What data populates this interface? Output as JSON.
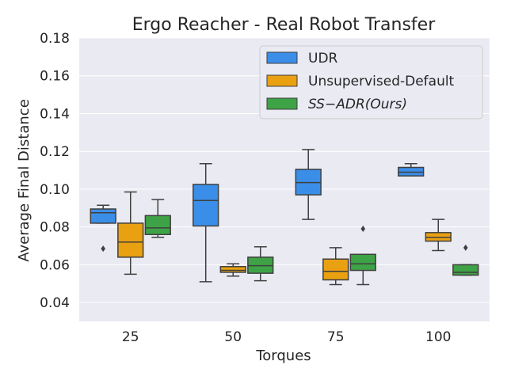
{
  "chart_data": {
    "type": "boxplot",
    "title": "Ergo Reacher - Real Robot Transfer",
    "xlabel": "Torques",
    "ylabel": "Average Final Distance",
    "categories": [
      "25",
      "50",
      "75",
      "100"
    ],
    "ylim": [
      0.03,
      0.18
    ],
    "yticks": [
      "0.04",
      "0.06",
      "0.08",
      "0.10",
      "0.12",
      "0.14",
      "0.16",
      "0.18"
    ],
    "grid": true,
    "legend_position": "top-right",
    "series": [
      {
        "name": "UDR",
        "color": "#3b8ee8",
        "boxes": [
          {
            "whislo": 0.082,
            "q1": 0.082,
            "med": 0.0875,
            "q3": 0.0895,
            "whishi": 0.0915,
            "fliers": [
              0.0685
            ]
          },
          {
            "whislo": 0.051,
            "q1": 0.0805,
            "med": 0.094,
            "q3": 0.1025,
            "whishi": 0.1135,
            "fliers": []
          },
          {
            "whislo": 0.084,
            "q1": 0.097,
            "med": 0.1035,
            "q3": 0.1105,
            "whishi": 0.121,
            "fliers": []
          },
          {
            "whislo": 0.107,
            "q1": 0.107,
            "med": 0.109,
            "q3": 0.1115,
            "whishi": 0.1135,
            "fliers": []
          }
        ]
      },
      {
        "name": "Unsupervised-Default",
        "color": "#eaa111",
        "boxes": [
          {
            "whislo": 0.055,
            "q1": 0.064,
            "med": 0.072,
            "q3": 0.082,
            "whishi": 0.0985,
            "fliers": []
          },
          {
            "whislo": 0.054,
            "q1": 0.056,
            "med": 0.057,
            "q3": 0.059,
            "whishi": 0.0605,
            "fliers": []
          },
          {
            "whislo": 0.0495,
            "q1": 0.052,
            "med": 0.0565,
            "q3": 0.063,
            "whishi": 0.069,
            "fliers": []
          },
          {
            "whislo": 0.0675,
            "q1": 0.0725,
            "med": 0.0745,
            "q3": 0.077,
            "whishi": 0.084,
            "fliers": []
          }
        ]
      },
      {
        "name": "SS−ADR(Ours)",
        "color": "#3ea346",
        "boxes": [
          {
            "whislo": 0.0745,
            "q1": 0.076,
            "med": 0.0795,
            "q3": 0.086,
            "whishi": 0.0945,
            "fliers": []
          },
          {
            "whislo": 0.0515,
            "q1": 0.0555,
            "med": 0.0595,
            "q3": 0.064,
            "whishi": 0.0695,
            "fliers": []
          },
          {
            "whislo": 0.0495,
            "q1": 0.057,
            "med": 0.0605,
            "q3": 0.0655,
            "whishi": 0.0655,
            "fliers": [
              0.079
            ]
          },
          {
            "whislo": 0.0545,
            "q1": 0.0545,
            "med": 0.056,
            "q3": 0.06,
            "whishi": 0.06,
            "fliers": [
              0.069
            ]
          }
        ]
      }
    ]
  }
}
